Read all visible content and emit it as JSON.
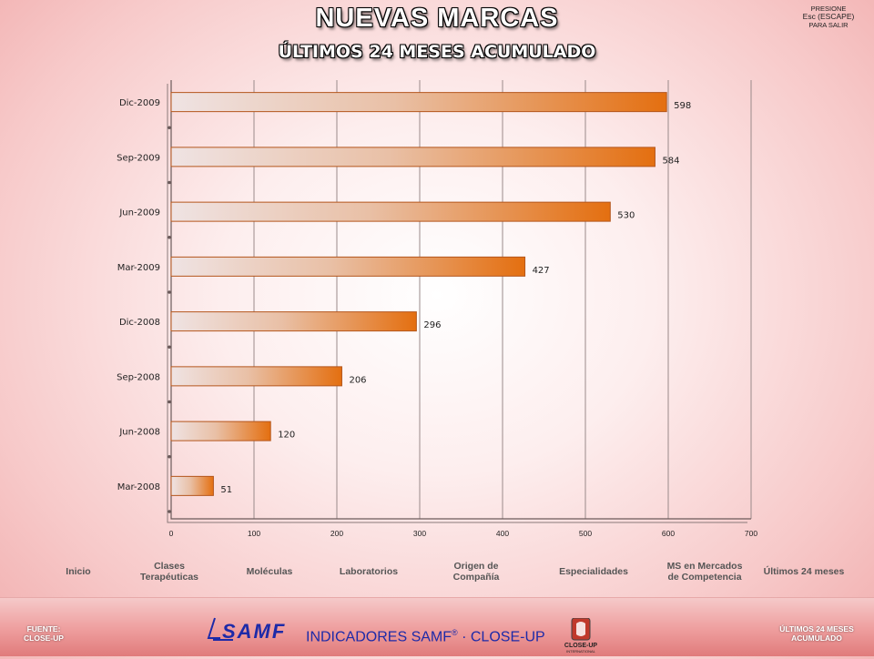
{
  "header": {
    "title": "NUEVAS MARCAS",
    "subtitle": "ÚLTIMOS 24 MESES ACUMULADO",
    "escape_line1": "PRESIONE",
    "escape_line2": "Esc (ESCAPE)",
    "escape_line3": "PARA SALIR"
  },
  "chart_data": {
    "type": "bar",
    "orientation": "horizontal",
    "categories": [
      "Dic-2009",
      "Sep-2009",
      "Jun-2009",
      "Mar-2009",
      "Dic-2008",
      "Sep-2008",
      "Jun-2008",
      "Mar-2008"
    ],
    "values": [
      598,
      584,
      530,
      427,
      296,
      206,
      120,
      51
    ],
    "xlim": [
      0,
      700
    ],
    "xticks": [
      0,
      100,
      200,
      300,
      400,
      500,
      600,
      700
    ],
    "grid": true,
    "bar_color_start": "#efe3e3",
    "bar_color_end": "#e46f10"
  },
  "nav": {
    "items": [
      {
        "label": "Inicio"
      },
      {
        "label": "Clases\nTerapéuticas"
      },
      {
        "label": "Moléculas"
      },
      {
        "label": "Laboratorios"
      },
      {
        "label": "Origen de\nCompañía"
      },
      {
        "label": "Especialidades"
      },
      {
        "label": "MS en Mercados\nde Competencia"
      },
      {
        "label": "Últimos 24 meses"
      }
    ]
  },
  "footer": {
    "source_line1": "FUENTE:",
    "source_line2": "CLOSE-UP",
    "center_text_pre": "INDICADORES SAMF",
    "center_sup": "®",
    "center_text_post": " · CLOSE-UP",
    "samf_logo_text": "SAMF",
    "closeup_logo_text1": "CLOSE-UP",
    "closeup_logo_text2": "INTERNATIONAL",
    "right_line1": "ÚLTIMOS 24 MESES",
    "right_line2": "ACUMULADO"
  }
}
